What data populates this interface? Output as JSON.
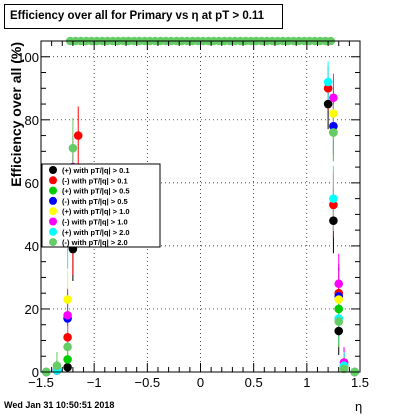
{
  "title": "Efficiency over all for Primary vs    η at pT > 0.11",
  "footer": {
    "date": "Wed Jan 31 10:50:51 2018"
  },
  "chart_data": {
    "type": "scatter",
    "title": "Efficiency over all for Primary vs    η at pT > 0.11",
    "xlabel": "η",
    "ylabel": "Efficiency over all (%)",
    "xlim": [
      -1.5,
      1.5
    ],
    "ylim": [
      0,
      105
    ],
    "x_ticks": [
      -1.5,
      -1,
      -0.5,
      0,
      0.5,
      1,
      1.5
    ],
    "x_tick_labels": [
      "−1.5",
      "−1",
      "−0.5",
      "0",
      "0.5",
      "1",
      "1.5"
    ],
    "y_ticks": [
      0,
      20,
      40,
      60,
      80,
      100
    ],
    "y_tick_labels": [
      "0",
      "20",
      "40",
      "60",
      "80",
      "100"
    ],
    "grid": true,
    "legend_position": "middle-left",
    "series": [
      {
        "name": "(+) with pT/|q| > 0.1",
        "color": "#000000",
        "points": [
          [
            -1.45,
            0
          ],
          [
            -1.35,
            0.5
          ],
          [
            -1.25,
            1.5
          ],
          [
            -1.2,
            39
          ],
          [
            1.2,
            85
          ],
          [
            1.25,
            48
          ],
          [
            1.3,
            13
          ],
          [
            1.35,
            2
          ],
          [
            1.45,
            0
          ]
        ]
      },
      {
        "name": "(-) with pT/|q| > 0.1",
        "color": "#ff0000",
        "points": [
          [
            -1.45,
            0
          ],
          [
            -1.35,
            0.5
          ],
          [
            -1.25,
            11
          ],
          [
            -1.2,
            41
          ],
          [
            -1.15,
            75
          ],
          [
            1.2,
            90
          ],
          [
            1.25,
            53
          ],
          [
            1.3,
            25
          ],
          [
            1.35,
            3
          ],
          [
            1.45,
            0
          ]
        ]
      },
      {
        "name": "(+) with pT/|q| > 0.5",
        "color": "#00cc00",
        "points": [
          [
            -1.45,
            0
          ],
          [
            -1.35,
            0.5
          ],
          [
            -1.25,
            4
          ],
          [
            -1.2,
            57
          ],
          [
            1.25,
            76
          ],
          [
            1.3,
            20
          ],
          [
            1.35,
            2
          ],
          [
            1.45,
            0
          ]
        ]
      },
      {
        "name": "(-) with pT/|q| > 0.5",
        "color": "#0000ff",
        "points": [
          [
            -1.45,
            0
          ],
          [
            -1.35,
            0.5
          ],
          [
            -1.25,
            17
          ],
          [
            -1.2,
            59
          ],
          [
            1.25,
            78
          ],
          [
            1.3,
            24
          ],
          [
            1.35,
            2
          ],
          [
            1.45,
            0
          ]
        ]
      },
      {
        "name": "(+) with pT/|q| > 1.0",
        "color": "#ffff00",
        "points": [
          [
            -1.45,
            0
          ],
          [
            -1.35,
            0.5
          ],
          [
            -1.25,
            23
          ],
          [
            -1.2,
            64
          ],
          [
            1.25,
            82
          ],
          [
            1.3,
            23
          ],
          [
            1.35,
            2
          ],
          [
            1.45,
            0
          ]
        ]
      },
      {
        "name": "(-) with pT/|q| > 1.0",
        "color": "#ff00ff",
        "points": [
          [
            -1.45,
            0
          ],
          [
            -1.35,
            0.5
          ],
          [
            -1.25,
            18
          ],
          [
            -1.2,
            65
          ],
          [
            1.25,
            87
          ],
          [
            1.3,
            28
          ],
          [
            1.35,
            3
          ],
          [
            1.45,
            0
          ]
        ]
      },
      {
        "name": "(+) with pT/|q| > 2.0",
        "color": "#00ffff",
        "points": [
          [
            -1.45,
            0
          ],
          [
            -1.35,
            0.5
          ],
          [
            -1.25,
            43
          ],
          [
            -1.2,
            51
          ],
          [
            1.2,
            92
          ],
          [
            1.25,
            55
          ],
          [
            1.3,
            17
          ],
          [
            1.35,
            2
          ],
          [
            1.45,
            0
          ]
        ]
      },
      {
        "name": "(-) with pT/|q| > 2.0",
        "color": "#66cc66",
        "points": [
          [
            -1.45,
            0
          ],
          [
            -1.35,
            2
          ],
          [
            -1.25,
            8
          ],
          [
            -1.2,
            71
          ],
          [
            -1.225,
            105
          ],
          [
            -1.175,
            105
          ],
          [
            -1.125,
            105
          ],
          [
            -1.075,
            105
          ],
          [
            -1.025,
            105
          ],
          [
            -0.975,
            105
          ],
          [
            -0.925,
            105
          ],
          [
            -0.875,
            105
          ],
          [
            -0.825,
            105
          ],
          [
            -0.775,
            105
          ],
          [
            -0.725,
            105
          ],
          [
            -0.675,
            105
          ],
          [
            -0.625,
            105
          ],
          [
            -0.575,
            105
          ],
          [
            -0.525,
            105
          ],
          [
            -0.475,
            105
          ],
          [
            -0.425,
            105
          ],
          [
            -0.375,
            105
          ],
          [
            -0.325,
            105
          ],
          [
            -0.275,
            105
          ],
          [
            -0.225,
            105
          ],
          [
            -0.175,
            105
          ],
          [
            -0.125,
            105
          ],
          [
            -0.075,
            105
          ],
          [
            -0.025,
            105
          ],
          [
            0.025,
            105
          ],
          [
            0.075,
            105
          ],
          [
            0.125,
            105
          ],
          [
            0.175,
            105
          ],
          [
            0.225,
            105
          ],
          [
            0.275,
            105
          ],
          [
            0.325,
            105
          ],
          [
            0.375,
            105
          ],
          [
            0.425,
            105
          ],
          [
            0.475,
            105
          ],
          [
            0.525,
            105
          ],
          [
            0.575,
            105
          ],
          [
            0.625,
            105
          ],
          [
            0.675,
            105
          ],
          [
            0.725,
            105
          ],
          [
            0.775,
            105
          ],
          [
            0.825,
            105
          ],
          [
            0.875,
            105
          ],
          [
            0.925,
            105
          ],
          [
            0.975,
            105
          ],
          [
            1.025,
            105
          ],
          [
            1.075,
            105
          ],
          [
            1.125,
            105
          ],
          [
            1.175,
            105
          ],
          [
            1.225,
            105
          ],
          [
            1.25,
            76
          ],
          [
            1.3,
            16
          ],
          [
            1.35,
            1
          ],
          [
            1.45,
            0
          ]
        ]
      }
    ]
  }
}
